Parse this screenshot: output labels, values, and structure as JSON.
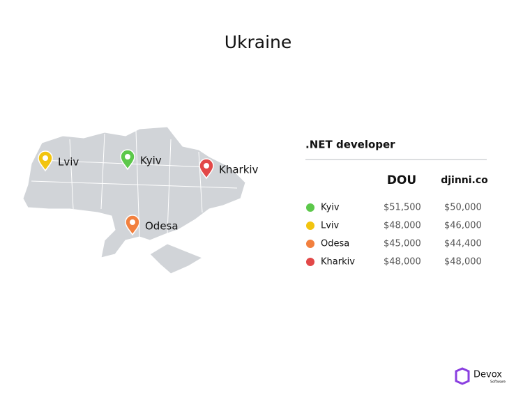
{
  "header": {
    "title": "Ukraine"
  },
  "map": {
    "pins": [
      {
        "label": "Lviv",
        "color": "#f2c40f"
      },
      {
        "label": "Kyiv",
        "color": "#5cc84a"
      },
      {
        "label": "Kharkiv",
        "color": "#e24848"
      },
      {
        "label": "Odesa",
        "color": "#f2803e"
      }
    ]
  },
  "table": {
    "title": ".NET developer",
    "columns": [
      "DOU",
      "djinni.co"
    ],
    "rows": [
      {
        "city": "Kyiv",
        "color": "#5cc84a",
        "values": [
          "$51,500",
          "$50,000"
        ]
      },
      {
        "city": "Lviv",
        "color": "#f2c40f",
        "values": [
          "$48,000",
          "$46,000"
        ]
      },
      {
        "city": "Odesa",
        "color": "#f2803e",
        "values": [
          "$45,000",
          "$44,400"
        ]
      },
      {
        "city": "Kharkiv",
        "color": "#e24848",
        "values": [
          "$48,000",
          "$48,000"
        ]
      }
    ]
  },
  "logo": {
    "name": "Devox",
    "tagline": "Software"
  }
}
